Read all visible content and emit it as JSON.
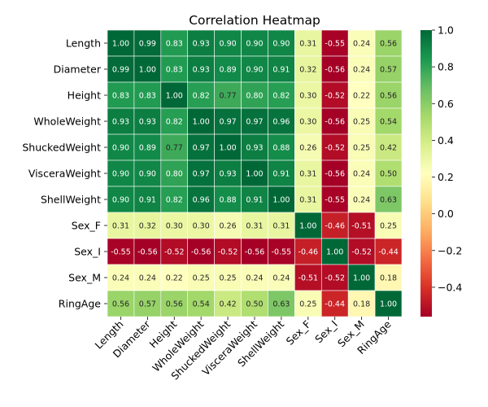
{
  "chart_data": {
    "type": "heatmap",
    "title": "Correlation Heatmap",
    "row_labels": [
      "Length",
      "Diameter",
      "Height",
      "WholeWeight",
      "ShuckedWeight",
      "VisceraWeight",
      "ShellWeight",
      "Sex_F",
      "Sex_I",
      "Sex_M",
      "RingAge"
    ],
    "col_labels": [
      "Length",
      "Diameter",
      "Height",
      "WholeWeight",
      "ShuckedWeight",
      "VisceraWeight",
      "ShellWeight",
      "Sex_F",
      "Sex_I",
      "Sex_M",
      "RingAge"
    ],
    "values": [
      [
        1.0,
        0.99,
        0.83,
        0.93,
        0.9,
        0.9,
        0.9,
        0.31,
        -0.55,
        0.24,
        0.56
      ],
      [
        0.99,
        1.0,
        0.83,
        0.93,
        0.89,
        0.9,
        0.91,
        0.32,
        -0.56,
        0.24,
        0.57
      ],
      [
        0.83,
        0.83,
        1.0,
        0.82,
        0.77,
        0.8,
        0.82,
        0.3,
        -0.52,
        0.22,
        0.56
      ],
      [
        0.93,
        0.93,
        0.82,
        1.0,
        0.97,
        0.97,
        0.96,
        0.3,
        -0.56,
        0.25,
        0.54
      ],
      [
        0.9,
        0.89,
        0.77,
        0.97,
        1.0,
        0.93,
        0.88,
        0.26,
        -0.52,
        0.25,
        0.42
      ],
      [
        0.9,
        0.9,
        0.8,
        0.97,
        0.93,
        1.0,
        0.91,
        0.31,
        -0.56,
        0.24,
        0.5
      ],
      [
        0.9,
        0.91,
        0.82,
        0.96,
        0.88,
        0.91,
        1.0,
        0.31,
        -0.55,
        0.24,
        0.63
      ],
      [
        0.31,
        0.32,
        0.3,
        0.3,
        0.26,
        0.31,
        0.31,
        1.0,
        -0.46,
        -0.51,
        0.25
      ],
      [
        -0.55,
        -0.56,
        -0.52,
        -0.56,
        -0.52,
        -0.56,
        -0.55,
        -0.46,
        1.0,
        -0.52,
        -0.44
      ],
      [
        0.24,
        0.24,
        0.22,
        0.25,
        0.25,
        0.24,
        0.24,
        -0.51,
        -0.52,
        1.0,
        0.18
      ],
      [
        0.56,
        0.57,
        0.56,
        0.54,
        0.42,
        0.5,
        0.63,
        0.25,
        -0.44,
        0.18,
        1.0
      ]
    ],
    "colormap": "RdYlGn",
    "vmin": -0.56,
    "vmax": 1.0,
    "colorbar_ticks": [
      1.0,
      0.8,
      0.6,
      0.4,
      0.2,
      0.0,
      -0.2,
      -0.4
    ],
    "colorbar_tick_labels": [
      "1.0",
      "0.8",
      "0.6",
      "0.4",
      "0.2",
      "0.0",
      "−0.2",
      "−0.4"
    ],
    "annotation_format": "0.00",
    "cell_border_color": "#ffffff"
  }
}
